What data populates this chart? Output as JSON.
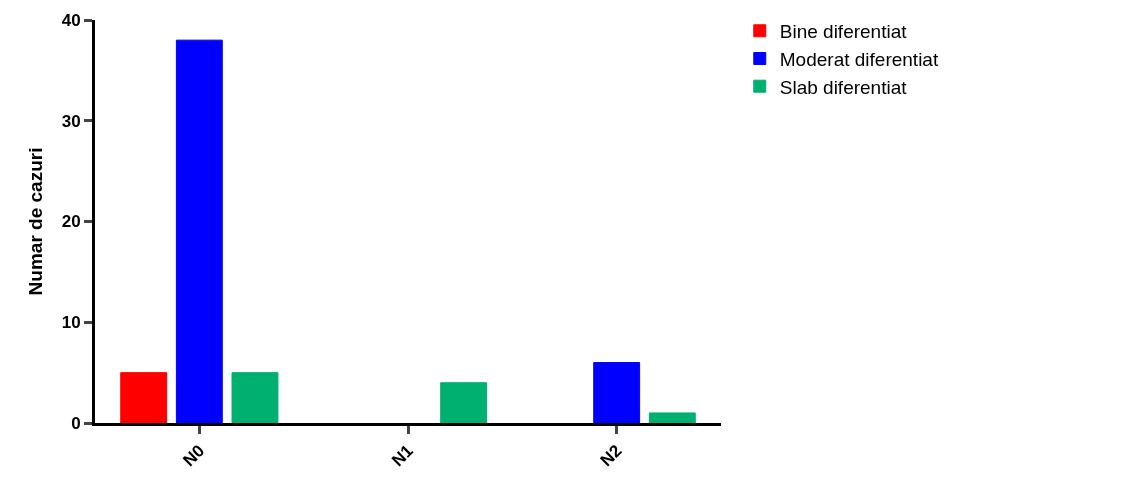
{
  "chart_data": {
    "type": "bar",
    "ylabel": "Numar de cazuri",
    "categories": [
      "N0",
      "N1",
      "N2"
    ],
    "series": [
      {
        "name": "Bine diferentiat",
        "color": "#ff0000",
        "values": [
          5,
          0,
          0
        ]
      },
      {
        "name": "Moderat diferentiat",
        "color": "#0000ff",
        "values": [
          38,
          0,
          6
        ]
      },
      {
        "name": "Slab diferentiat",
        "color": "#00b070",
        "values": [
          5,
          4,
          1
        ]
      }
    ],
    "ylim": [
      0,
      40
    ],
    "yticks": [
      0,
      10,
      20,
      30,
      40
    ],
    "legend": "top right"
  }
}
